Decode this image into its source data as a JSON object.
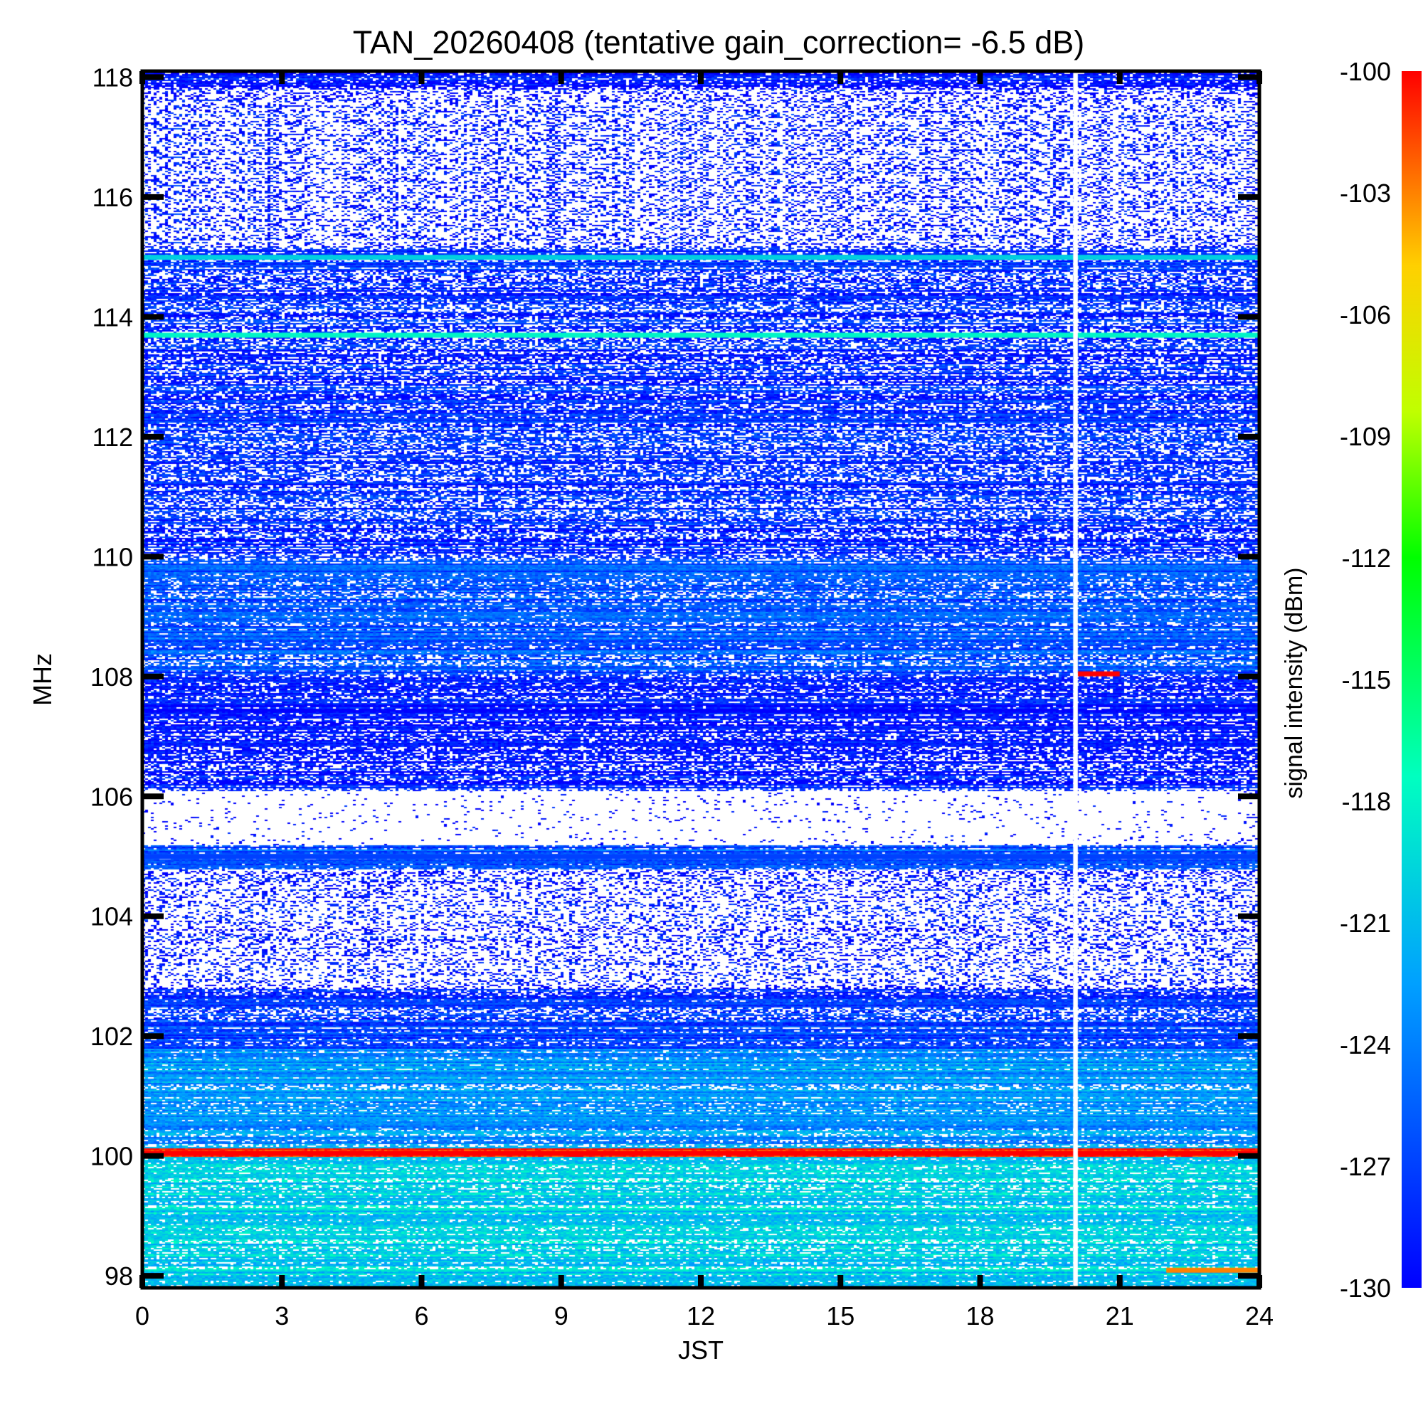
{
  "chart_data": {
    "type": "heatmap",
    "title": "TAN_20260408 (tentative gain_correction= -6.5 dB)",
    "xlabel": "JST",
    "ylabel": "MHz",
    "xlim": [
      0,
      24
    ],
    "ylim": [
      97.8,
      118.1
    ],
    "x_ticks": [
      0,
      3,
      6,
      9,
      12,
      15,
      18,
      21,
      24
    ],
    "x_tick_labels": [
      "0",
      "3",
      "6",
      "9",
      "12",
      "15",
      "18",
      "21",
      "24"
    ],
    "y_ticks": [
      98,
      100,
      102,
      104,
      106,
      108,
      110,
      112,
      114,
      116,
      118
    ],
    "y_tick_labels": [
      "98",
      "100",
      "102",
      "104",
      "106",
      "108",
      "110",
      "112",
      "114",
      "116",
      "118"
    ],
    "colorbar": {
      "label": "signal intensity (dBm)",
      "range": [
        -130,
        -100
      ],
      "ticks": [
        -100,
        -103,
        -106,
        -109,
        -112,
        -115,
        -118,
        -121,
        -124,
        -127,
        -130
      ],
      "tick_labels": [
        "-100",
        "-103",
        "-106",
        "-109",
        "-112",
        "-115",
        "-118",
        "-121",
        "-124",
        "-127",
        "-130"
      ]
    },
    "data_gap": {
      "start_jst": 20.0,
      "end_jst": 20.1
    },
    "bands": [
      {
        "fmin": 97.8,
        "fmax": 100.0,
        "level_dbm": -120,
        "density": 1.0
      },
      {
        "fmin": 100.0,
        "fmax": 100.15,
        "level_dbm": -100,
        "density": 1.0
      },
      {
        "fmin": 100.15,
        "fmax": 101.8,
        "level_dbm": -123,
        "density": 1.0
      },
      {
        "fmin": 101.8,
        "fmax": 102.8,
        "level_dbm": -127,
        "density": 0.9
      },
      {
        "fmin": 102.8,
        "fmax": 104.8,
        "level_dbm": -129,
        "density": 0.3
      },
      {
        "fmin": 104.8,
        "fmax": 105.2,
        "level_dbm": -126,
        "density": 1.0
      },
      {
        "fmin": 105.2,
        "fmax": 106.1,
        "level_dbm": -130,
        "density": 0.04
      },
      {
        "fmin": 106.1,
        "fmax": 108.0,
        "level_dbm": -129,
        "density": 0.8
      },
      {
        "fmin": 108.0,
        "fmax": 110.0,
        "level_dbm": -126,
        "density": 0.95
      },
      {
        "fmin": 110.0,
        "fmax": 112.5,
        "level_dbm": -128,
        "density": 0.75
      },
      {
        "fmin": 112.5,
        "fmax": 115.2,
        "level_dbm": -128,
        "density": 0.7
      },
      {
        "fmin": 115.2,
        "fmax": 117.8,
        "level_dbm": -129,
        "density": 0.3
      },
      {
        "fmin": 117.8,
        "fmax": 118.1,
        "level_dbm": -129,
        "density": 0.7
      }
    ],
    "lines": [
      {
        "freq": 100.05,
        "level_dbm": -100
      },
      {
        "freq": 113.7,
        "level_dbm": -118
      },
      {
        "freq": 115.0,
        "level_dbm": -120
      },
      {
        "freq": 105.0,
        "level_dbm": -127
      },
      {
        "freq": 108.05,
        "level_dbm": -100,
        "x0": 20.1,
        "x1": 21.0
      },
      {
        "freq": 98.1,
        "level_dbm": -103,
        "x0": 22.0,
        "x1": 24.0
      }
    ]
  }
}
